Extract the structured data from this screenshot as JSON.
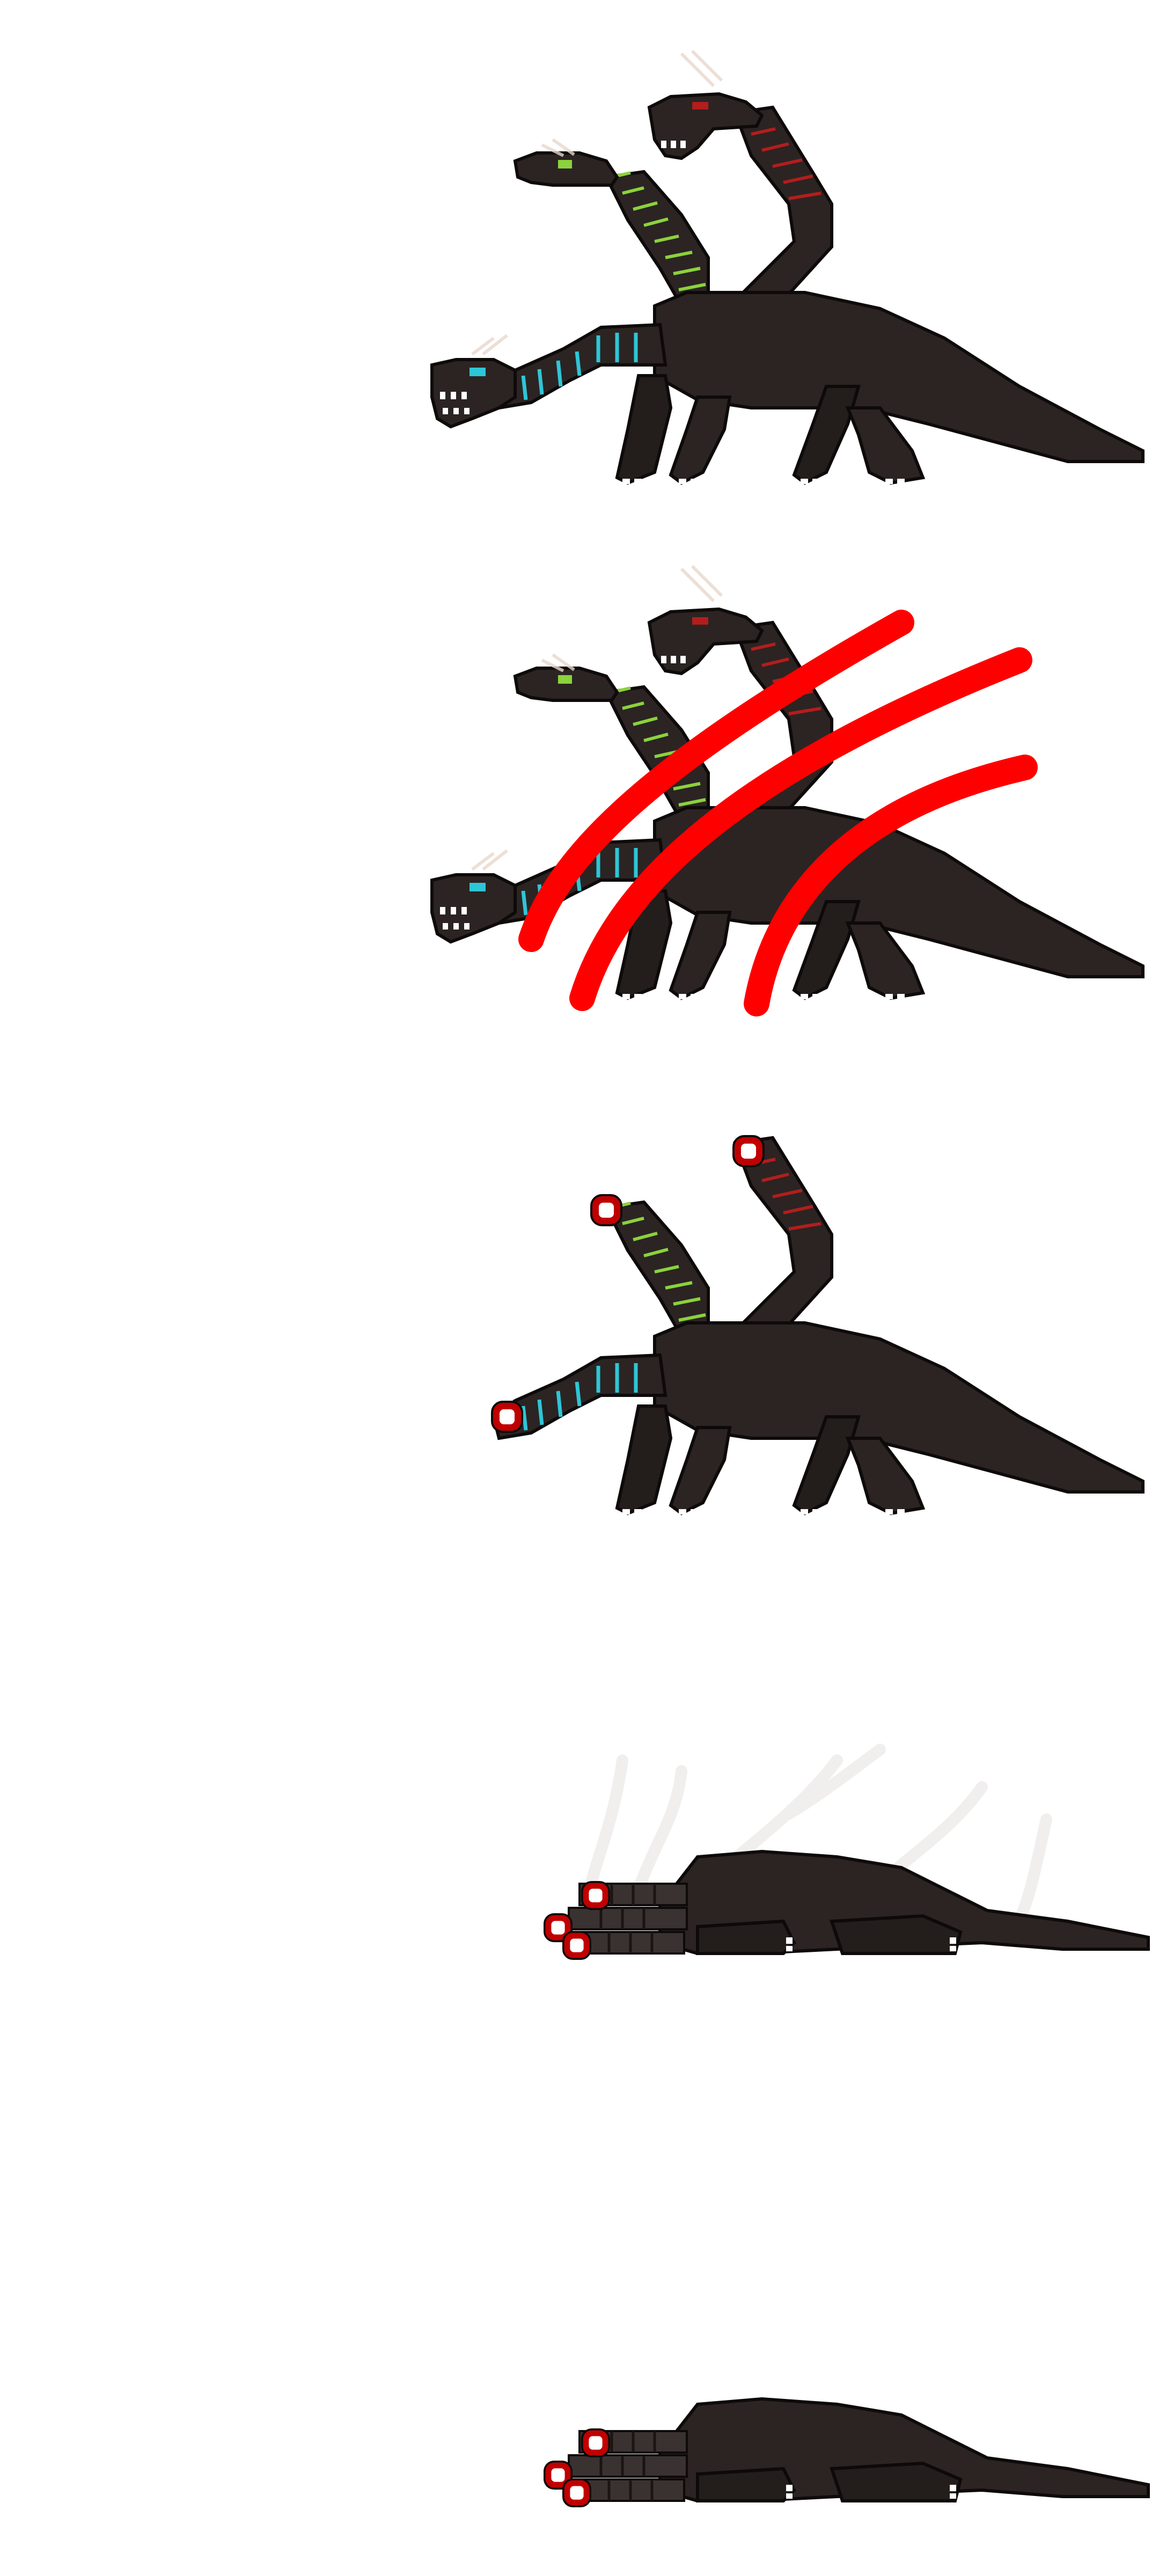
{
  "sprite_sheet": {
    "subject": "three-headed-hydra",
    "frames": [
      {
        "state": "idle",
        "heads": [
          "green",
          "red",
          "cyan"
        ]
      },
      {
        "state": "hit",
        "effect": "red-claw-slash"
      },
      {
        "state": "decapitated"
      },
      {
        "state": "dying",
        "effect": "smoke-wisps"
      },
      {
        "state": "dead"
      }
    ]
  },
  "colors": {
    "background": "#ffffff",
    "body": "#2b2423",
    "body_shadow": "#1a1414",
    "outline": "#0e0a0a",
    "teeth": "#ffffff",
    "head_green_stripe": "#8bd23c",
    "head_red_stripe": "#b31d1d",
    "head_cyan_stripe": "#2ec6d6",
    "slash": "#ff0000",
    "neck_stump": "#c00000",
    "horn": "#e8d8cc",
    "smoke": "#f1eeee"
  }
}
